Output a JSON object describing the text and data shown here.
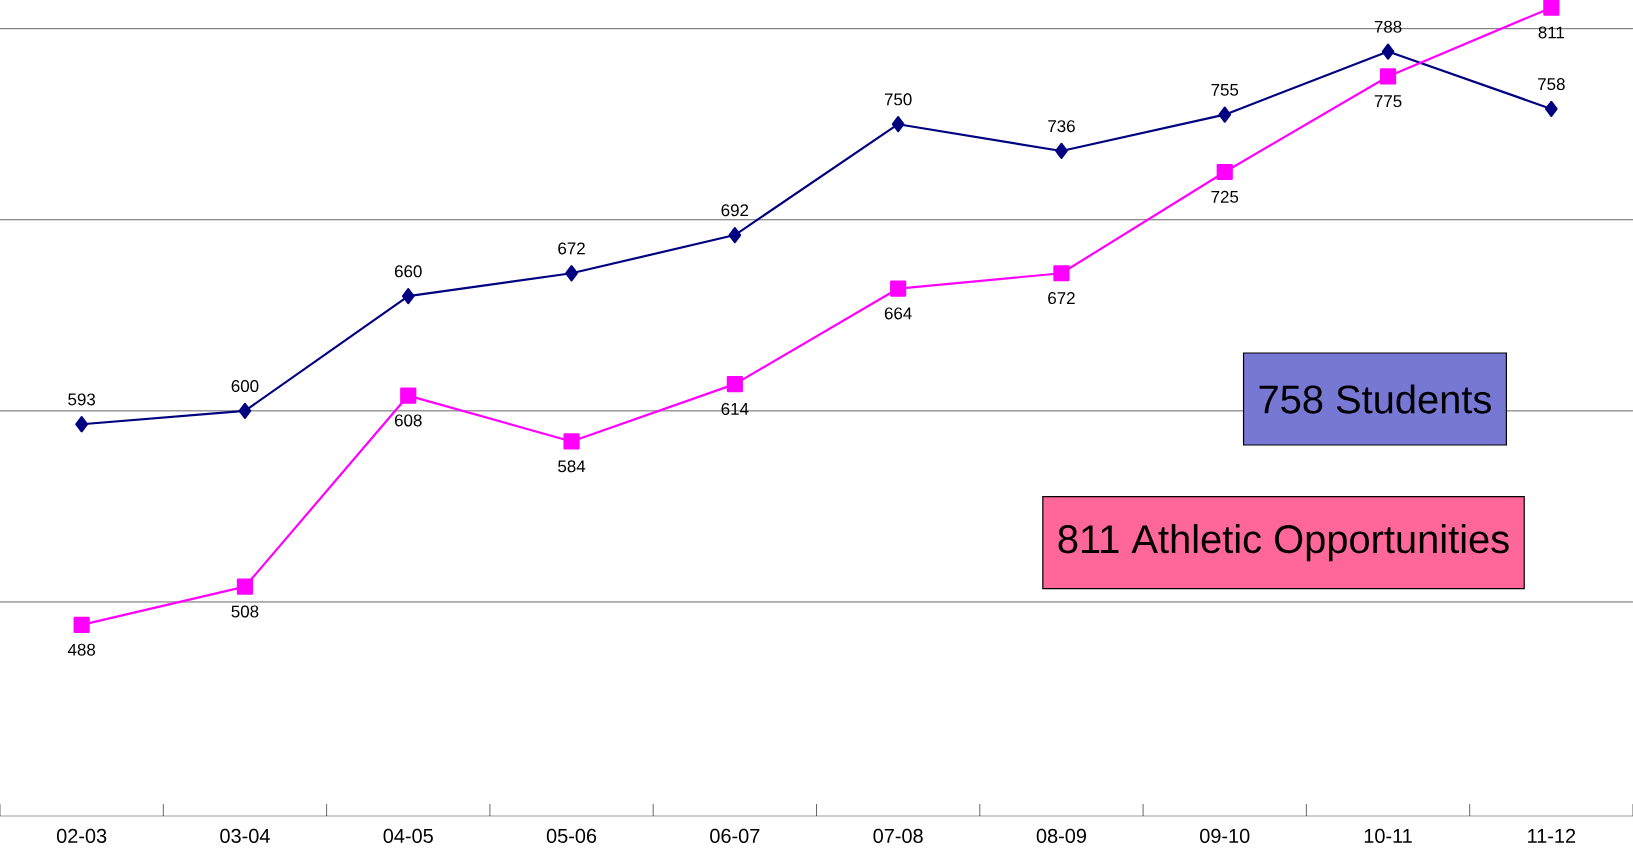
{
  "chart_data": {
    "type": "line",
    "categories": [
      "02-03",
      "03-04",
      "04-05",
      "05-06",
      "06-07",
      "07-08",
      "08-09",
      "09-10",
      "10-11",
      "11-12"
    ],
    "series": [
      {
        "color": "#000080",
        "marker": "diamond",
        "values": [
          593,
          600,
          660,
          672,
          692,
          750,
          736,
          755,
          788,
          758
        ]
      },
      {
        "color": "#ff00ff",
        "marker": "square",
        "values": [
          488,
          508,
          608,
          584,
          614,
          664,
          672,
          725,
          775,
          811
        ]
      }
    ],
    "yticks": [
      {
        "value": 500,
        "label": null
      },
      {
        "value": 600,
        "label": null
      },
      {
        "value": 700,
        "label": null
      },
      {
        "value": 800,
        "label": null
      }
    ],
    "grid": "y",
    "tick_labels": "x",
    "data_labels": true,
    "annotations": [
      "758 Students",
      "811 Athletic Opportunities"
    ]
  }
}
